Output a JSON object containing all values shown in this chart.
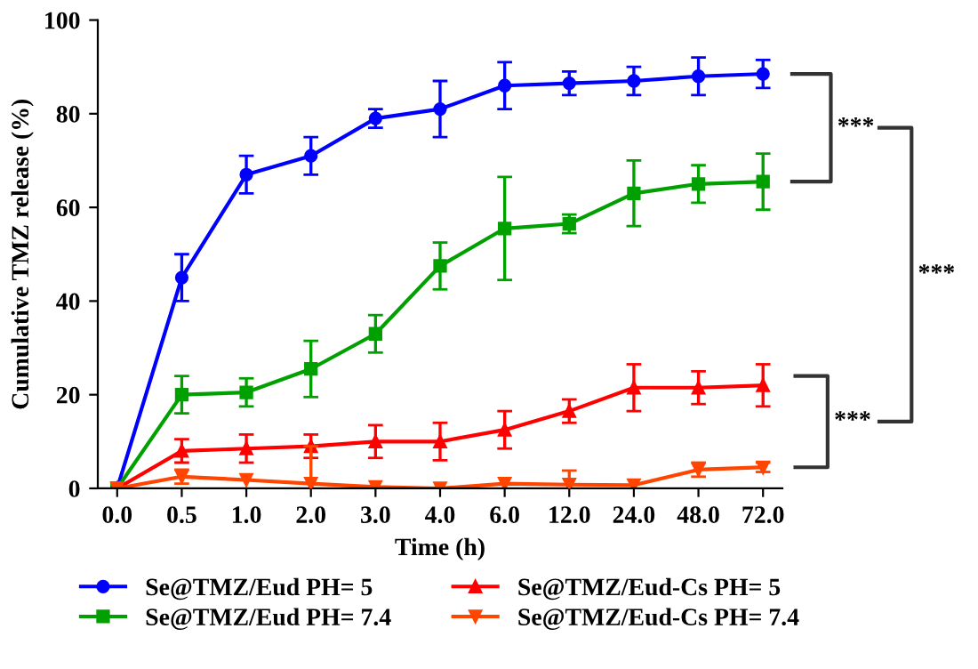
{
  "chart_data": {
    "type": "line",
    "xlabel": "Time (h)",
    "ylabel": "Cumulative TMZ release (%)",
    "categories": [
      "0.0",
      "0.5",
      "1.0",
      "2.0",
      "3.0",
      "4.0",
      "6.0",
      "12.0",
      "24.0",
      "48.0",
      "72.0"
    ],
    "ylim": [
      0,
      100
    ],
    "yticks": [
      0,
      20,
      40,
      60,
      80,
      100
    ],
    "grid": false,
    "legend": "bottom",
    "series": [
      {
        "name": "Se@TMZ/Eud PH= 5",
        "color": "#0000ff",
        "marker": "circle",
        "values": [
          0,
          45,
          67,
          71,
          79,
          81,
          86,
          86.5,
          87,
          88,
          88.5
        ],
        "errors": [
          null,
          5,
          4,
          4,
          2,
          6,
          5,
          2.5,
          3,
          4,
          3
        ]
      },
      {
        "name": "Se@TMZ/Eud PH= 7.4",
        "color": "#00a000",
        "marker": "square",
        "values": [
          0,
          20,
          20.5,
          25.5,
          33,
          47.5,
          55.5,
          56.5,
          63,
          65,
          65.5
        ],
        "errors": [
          null,
          4,
          3,
          6,
          4,
          5,
          11,
          2,
          7,
          4,
          6
        ]
      },
      {
        "name": "Se@TMZ/Eud-Cs PH= 5",
        "color": "#ff0000",
        "marker": "triangle",
        "values": [
          0,
          8,
          8.5,
          9,
          10,
          10,
          12.5,
          16.5,
          21.5,
          21.5,
          22
        ],
        "errors": [
          null,
          2.5,
          3,
          2.5,
          3.5,
          4,
          4,
          2.5,
          5,
          3.5,
          4.5
        ]
      },
      {
        "name": "Se@TMZ/Eud-Cs PH= 7.4",
        "color": "#ff4500",
        "marker": "triangle_down",
        "values": [
          0,
          2.5,
          1.8,
          1,
          0.3,
          0,
          1,
          0.8,
          0.7,
          4,
          4.5
        ],
        "errors": [
          null,
          1.5,
          null,
          8,
          null,
          null,
          null,
          3,
          null,
          1.5,
          1
        ]
      }
    ],
    "annotations": [
      "***",
      "***",
      "***"
    ]
  }
}
